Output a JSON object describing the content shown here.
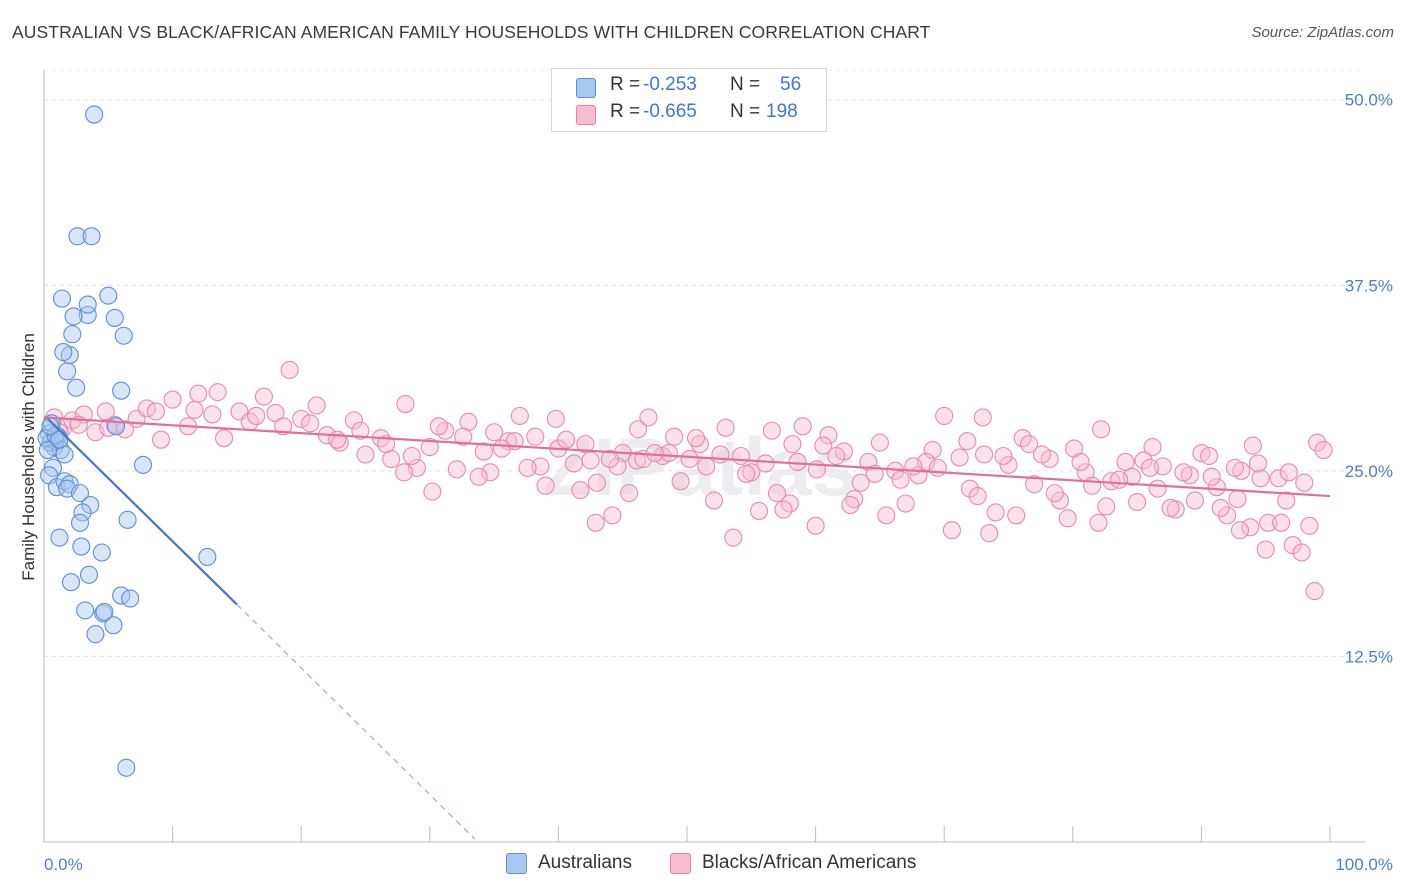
{
  "header": {
    "title": "AUSTRALIAN VS BLACK/AFRICAN AMERICAN FAMILY HOUSEHOLDS WITH CHILDREN CORRELATION CHART",
    "source": "Source: ZipAtlas.com"
  },
  "legend_top": {
    "rows": [
      {
        "r_label": "R =",
        "r_value": "-0.253",
        "n_label": "N =",
        "n_value": "56",
        "color": "#a9c8f0",
        "border": "#5b8fd6"
      },
      {
        "r_label": "R =",
        "r_value": "-0.665",
        "n_label": "N =",
        "n_value": "198",
        "color": "#f7bcd0",
        "border": "#e67fa4"
      }
    ]
  },
  "legend_bottom": {
    "items": [
      {
        "label": "Australians",
        "color": "#a9c8f0",
        "border": "#5b8fd6"
      },
      {
        "label": "Blacks/African Americans",
        "color": "#f7bcd0",
        "border": "#e67fa4"
      }
    ]
  },
  "chart_data": {
    "type": "scatter",
    "title": "AUSTRALIAN VS BLACK/AFRICAN AMERICAN FAMILY HOUSEHOLDS WITH CHILDREN CORRELATION CHART",
    "xlabel": "",
    "ylabel": "Family Households with Children",
    "xlim": [
      0,
      100
    ],
    "ylim": [
      0,
      52
    ],
    "x_ticks": [
      "0.0%",
      "100.0%"
    ],
    "y_ticks": [
      {
        "value": 12.5,
        "label": "12.5%"
      },
      {
        "value": 25.0,
        "label": "25.0%"
      },
      {
        "value": 37.5,
        "label": "37.5%"
      },
      {
        "value": 50.0,
        "label": "50.0%"
      }
    ],
    "grid": true,
    "legend_position": "bottom",
    "colors": {
      "australians": "#5b8fd6",
      "blacks": "#e67fa4"
    },
    "series": [
      {
        "name": "Australians",
        "trend": {
          "x": [
            0.3,
            15.0
          ],
          "y": [
            28.5,
            16.0
          ],
          "extend_to_x": 33.5,
          "extend_to_y": 0.2
        },
        "points": [
          [
            0.4,
            27.5
          ],
          [
            0.6,
            28.2
          ],
          [
            0.8,
            26.6
          ],
          [
            0.5,
            26.9
          ],
          [
            0.9,
            27.0
          ],
          [
            1.1,
            27.3
          ],
          [
            1.3,
            26.4
          ],
          [
            0.7,
            25.2
          ],
          [
            0.4,
            24.7
          ],
          [
            1.0,
            23.9
          ],
          [
            1.6,
            24.3
          ],
          [
            2.0,
            24.1
          ],
          [
            1.8,
            23.8
          ],
          [
            2.8,
            23.5
          ],
          [
            3.6,
            22.7
          ],
          [
            3.0,
            22.2
          ],
          [
            2.8,
            21.5
          ],
          [
            1.2,
            20.5
          ],
          [
            2.9,
            19.9
          ],
          [
            4.5,
            19.5
          ],
          [
            3.5,
            18.0
          ],
          [
            2.1,
            17.5
          ],
          [
            6.5,
            21.7
          ],
          [
            7.7,
            25.4
          ],
          [
            5.6,
            28.0
          ],
          [
            6.0,
            30.4
          ],
          [
            0.2,
            27.2
          ],
          [
            2.0,
            32.8
          ],
          [
            1.5,
            33.0
          ],
          [
            2.5,
            30.6
          ],
          [
            1.8,
            31.7
          ],
          [
            5.5,
            35.3
          ],
          [
            6.2,
            34.1
          ],
          [
            2.2,
            34.2
          ],
          [
            3.4,
            35.5
          ],
          [
            2.3,
            35.4
          ],
          [
            1.4,
            36.6
          ],
          [
            5.0,
            36.8
          ],
          [
            3.4,
            36.2
          ],
          [
            2.6,
            40.8
          ],
          [
            3.7,
            40.8
          ],
          [
            3.9,
            49.0
          ],
          [
            12.7,
            19.2
          ],
          [
            6.0,
            16.6
          ],
          [
            6.7,
            16.4
          ],
          [
            3.2,
            15.6
          ],
          [
            4.6,
            15.4
          ],
          [
            5.4,
            14.6
          ],
          [
            4.0,
            14.0
          ],
          [
            4.7,
            15.5
          ],
          [
            0.9,
            27.4
          ],
          [
            1.6,
            26.1
          ],
          [
            6.4,
            5.0
          ],
          [
            0.3,
            26.4
          ],
          [
            0.5,
            28.0
          ],
          [
            1.2,
            27.1
          ]
        ]
      },
      {
        "name": "Blacks/African Americans",
        "trend": {
          "x": [
            0.0,
            100.0
          ],
          "y": [
            28.6,
            23.3
          ]
        },
        "points": [
          [
            0.8,
            28.6
          ],
          [
            1.5,
            27.9
          ],
          [
            2.2,
            28.4
          ],
          [
            3.1,
            28.8
          ],
          [
            4.0,
            27.6
          ],
          [
            4.8,
            29.0
          ],
          [
            5.5,
            28.1
          ],
          [
            6.3,
            27.8
          ],
          [
            7.2,
            28.5
          ],
          [
            8.0,
            29.2
          ],
          [
            9.1,
            27.1
          ],
          [
            10.0,
            29.8
          ],
          [
            11.2,
            28.0
          ],
          [
            12.0,
            30.2
          ],
          [
            13.1,
            28.8
          ],
          [
            14.0,
            27.2
          ],
          [
            15.2,
            29.0
          ],
          [
            16.0,
            28.3
          ],
          [
            17.1,
            30.0
          ],
          [
            18.0,
            28.9
          ],
          [
            19.1,
            31.8
          ],
          [
            20.0,
            28.5
          ],
          [
            21.2,
            29.4
          ],
          [
            22.0,
            27.4
          ],
          [
            23.0,
            26.9
          ],
          [
            24.1,
            28.4
          ],
          [
            25.0,
            26.1
          ],
          [
            26.2,
            27.2
          ],
          [
            27.0,
            25.8
          ],
          [
            28.1,
            29.5
          ],
          [
            29.0,
            25.2
          ],
          [
            30.0,
            26.6
          ],
          [
            31.2,
            27.7
          ],
          [
            32.1,
            25.1
          ],
          [
            33.0,
            28.3
          ],
          [
            34.2,
            26.3
          ],
          [
            35.0,
            27.6
          ],
          [
            36.1,
            27.0
          ],
          [
            37.0,
            28.7
          ],
          [
            38.2,
            27.3
          ],
          [
            39.0,
            24.0
          ],
          [
            40.0,
            26.5
          ],
          [
            41.2,
            25.5
          ],
          [
            42.1,
            26.8
          ],
          [
            43.0,
            24.2
          ],
          [
            44.2,
            22.0
          ],
          [
            45.0,
            26.2
          ],
          [
            46.1,
            25.7
          ],
          [
            47.0,
            28.6
          ],
          [
            48.1,
            26.0
          ],
          [
            49.0,
            27.3
          ],
          [
            50.2,
            25.8
          ],
          [
            51.0,
            26.8
          ],
          [
            52.1,
            23.0
          ],
          [
            53.0,
            27.9
          ],
          [
            54.2,
            26.0
          ],
          [
            55.0,
            24.9
          ],
          [
            56.1,
            25.5
          ],
          [
            57.0,
            23.5
          ],
          [
            58.2,
            26.8
          ],
          [
            59.0,
            28.0
          ],
          [
            60.1,
            25.1
          ],
          [
            61.0,
            27.4
          ],
          [
            62.2,
            26.3
          ],
          [
            63.0,
            23.1
          ],
          [
            64.1,
            25.6
          ],
          [
            65.0,
            26.9
          ],
          [
            66.2,
            25.0
          ],
          [
            67.0,
            22.8
          ],
          [
            68.0,
            24.7
          ],
          [
            69.1,
            26.4
          ],
          [
            70.0,
            28.7
          ],
          [
            71.2,
            25.9
          ],
          [
            72.0,
            23.8
          ],
          [
            73.1,
            26.1
          ],
          [
            74.0,
            22.2
          ],
          [
            75.0,
            25.4
          ],
          [
            76.1,
            27.2
          ],
          [
            77.0,
            24.1
          ],
          [
            78.2,
            25.8
          ],
          [
            79.0,
            23.0
          ],
          [
            80.1,
            26.5
          ],
          [
            81.0,
            24.9
          ],
          [
            82.2,
            27.8
          ],
          [
            83.0,
            24.3
          ],
          [
            84.1,
            25.6
          ],
          [
            85.0,
            22.9
          ],
          [
            86.2,
            26.6
          ],
          [
            87.0,
            25.3
          ],
          [
            88.0,
            22.4
          ],
          [
            89.1,
            24.7
          ],
          [
            90.0,
            26.2
          ],
          [
            91.2,
            23.9
          ],
          [
            92.0,
            22.0
          ],
          [
            93.1,
            25.0
          ],
          [
            94.0,
            26.7
          ],
          [
            95.2,
            21.5
          ],
          [
            96.0,
            24.5
          ],
          [
            97.1,
            20.0
          ],
          [
            98.0,
            24.2
          ],
          [
            99.0,
            26.9
          ],
          [
            99.5,
            26.4
          ],
          [
            1.2,
            27.6
          ],
          [
            2.7,
            28.1
          ],
          [
            5.0,
            27.9
          ],
          [
            8.7,
            29.0
          ],
          [
            11.7,
            29.1
          ],
          [
            13.5,
            30.3
          ],
          [
            16.5,
            28.7
          ],
          [
            18.6,
            28.0
          ],
          [
            20.7,
            28.2
          ],
          [
            22.8,
            27.1
          ],
          [
            24.6,
            27.7
          ],
          [
            26.6,
            26.8
          ],
          [
            28.6,
            26.0
          ],
          [
            30.7,
            28.0
          ],
          [
            32.6,
            27.3
          ],
          [
            34.7,
            24.9
          ],
          [
            36.6,
            27.0
          ],
          [
            38.6,
            25.3
          ],
          [
            40.6,
            27.1
          ],
          [
            42.5,
            25.7
          ],
          [
            44.6,
            25.3
          ],
          [
            46.6,
            25.8
          ],
          [
            48.6,
            26.2
          ],
          [
            50.7,
            27.2
          ],
          [
            52.6,
            26.1
          ],
          [
            54.6,
            24.8
          ],
          [
            56.6,
            27.7
          ],
          [
            58.6,
            25.6
          ],
          [
            60.6,
            26.7
          ],
          [
            62.7,
            22.7
          ],
          [
            64.6,
            24.8
          ],
          [
            66.6,
            24.4
          ],
          [
            68.6,
            25.6
          ],
          [
            70.6,
            21.0
          ],
          [
            72.6,
            23.3
          ],
          [
            74.6,
            26.0
          ],
          [
            76.6,
            26.8
          ],
          [
            78.6,
            23.5
          ],
          [
            80.6,
            25.6
          ],
          [
            82.6,
            22.6
          ],
          [
            84.6,
            24.6
          ],
          [
            86.6,
            23.8
          ],
          [
            88.6,
            24.9
          ],
          [
            90.6,
            26.0
          ],
          [
            92.6,
            25.2
          ],
          [
            94.6,
            24.5
          ],
          [
            96.6,
            23.0
          ],
          [
            98.4,
            21.3
          ],
          [
            45.5,
            23.5
          ],
          [
            53.6,
            20.5
          ],
          [
            60.0,
            21.3
          ],
          [
            65.5,
            22.0
          ],
          [
            73.5,
            20.8
          ],
          [
            82.0,
            21.5
          ],
          [
            87.6,
            22.5
          ],
          [
            91.5,
            22.5
          ],
          [
            93.8,
            21.2
          ],
          [
            95.0,
            19.7
          ],
          [
            96.2,
            21.5
          ],
          [
            97.8,
            19.5
          ],
          [
            98.8,
            16.9
          ],
          [
            33.8,
            24.6
          ],
          [
            37.6,
            25.2
          ],
          [
            41.7,
            23.7
          ],
          [
            49.5,
            24.3
          ],
          [
            55.6,
            22.3
          ],
          [
            58.0,
            22.8
          ],
          [
            61.6,
            26.0
          ],
          [
            67.6,
            25.3
          ],
          [
            71.8,
            27.0
          ],
          [
            75.6,
            22.0
          ],
          [
            79.6,
            21.8
          ],
          [
            83.6,
            24.4
          ],
          [
            85.5,
            25.7
          ],
          [
            89.5,
            23.0
          ],
          [
            93.0,
            21.0
          ],
          [
            47.5,
            26.2
          ],
          [
            51.5,
            25.3
          ],
          [
            57.5,
            22.4
          ],
          [
            63.5,
            24.2
          ],
          [
            69.5,
            25.2
          ],
          [
            73.0,
            28.6
          ],
          [
            77.6,
            26.1
          ],
          [
            81.5,
            24.0
          ],
          [
            86.0,
            25.2
          ],
          [
            90.8,
            24.6
          ],
          [
            92.8,
            23.1
          ],
          [
            94.4,
            25.5
          ],
          [
            96.8,
            24.9
          ],
          [
            42.9,
            21.5
          ],
          [
            39.8,
            28.5
          ],
          [
            44.0,
            25.8
          ],
          [
            46.2,
            27.8
          ],
          [
            30.2,
            23.6
          ],
          [
            28.0,
            24.9
          ],
          [
            35.6,
            26.5
          ]
        ]
      }
    ]
  }
}
